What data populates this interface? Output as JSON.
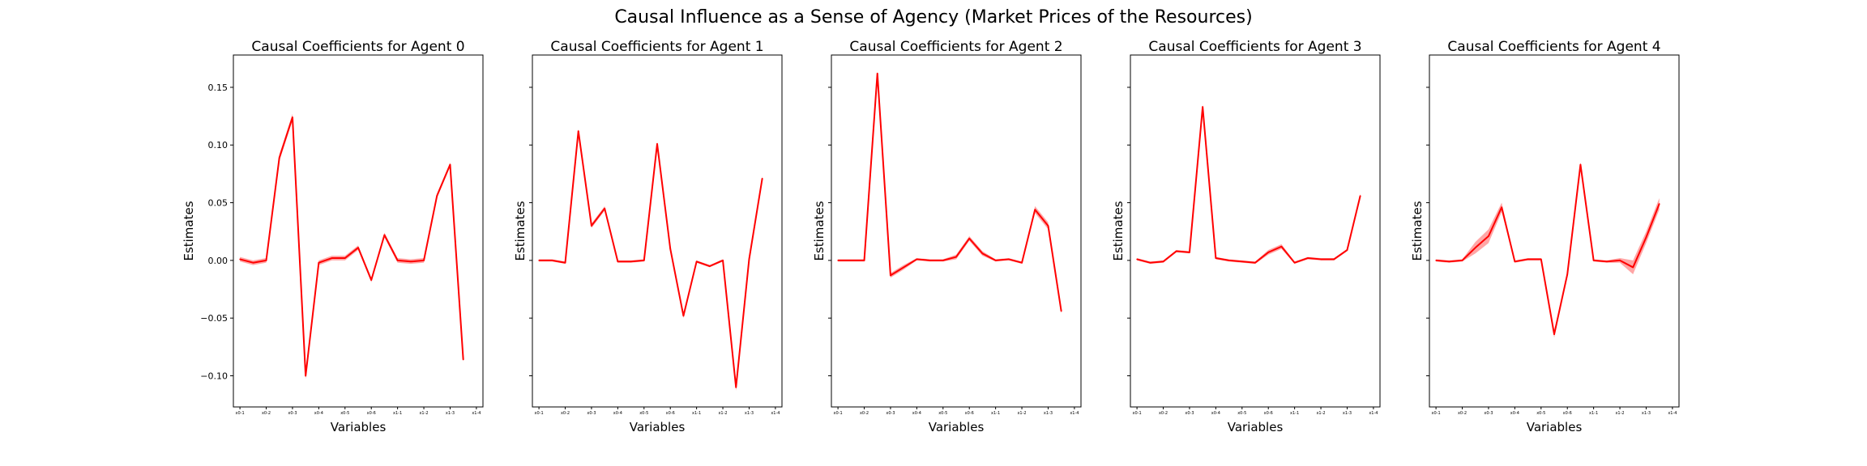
{
  "figure": {
    "title": "Causal Influence as a Sense of Agency (Market Prices of the Resources)"
  },
  "chart_data": [
    {
      "type": "line",
      "title": "Causal Coefficients for Agent 0",
      "xlabel": "Variables",
      "ylabel": "Estimates",
      "ylim": [
        -0.127,
        0.178
      ],
      "yticks": [
        -0.1,
        -0.05,
        0.0,
        0.05,
        0.1,
        0.15
      ],
      "ytick_labels": [
        "−0.10",
        "−0.05",
        "0.00",
        "0.05",
        "0.10",
        "0.15"
      ],
      "xtick_labels": [
        "x0-1",
        "x0-2",
        "x0-3",
        "x0-4",
        "x0-5",
        "x0-6",
        "x1-1",
        "x1-2",
        "x1-3",
        "x1-4"
      ],
      "xtick_positions": [
        0,
        2,
        4,
        6,
        8,
        10,
        12,
        14,
        16,
        18
      ],
      "color": "#ff0000",
      "values": [
        0.001,
        -0.002,
        0.0,
        0.089,
        0.124,
        -0.1,
        -0.002,
        0.002,
        0.002,
        0.011,
        -0.017,
        0.022,
        0.0,
        -0.001,
        0.0,
        0.056,
        0.083,
        -0.086
      ],
      "band": [
        0.002,
        0.002,
        0.002,
        0.003,
        0.003,
        0.003,
        0.002,
        0.002,
        0.002,
        0.002,
        0.002,
        0.002,
        0.002,
        0.002,
        0.002,
        0.002,
        0.002,
        0.002
      ]
    },
    {
      "type": "line",
      "title": "Causal Coefficients for Agent 1",
      "xlabel": "Variables",
      "ylabel": "Estimates",
      "ylim": [
        -0.127,
        0.178
      ],
      "yticks": [
        -0.1,
        -0.05,
        0.0,
        0.05,
        0.1,
        0.15
      ],
      "ytick_labels": [
        "",
        "",
        "",
        "",
        "",
        ""
      ],
      "xtick_labels": [
        "x0-1",
        "x0-2",
        "x0-3",
        "x0-4",
        "x0-5",
        "x0-6",
        "x1-1",
        "x1-2",
        "x1-3",
        "x1-4"
      ],
      "xtick_positions": [
        0,
        2,
        4,
        6,
        8,
        10,
        12,
        14,
        16,
        18
      ],
      "color": "#ff0000",
      "values": [
        0.0,
        0.0,
        -0.002,
        0.112,
        0.03,
        0.045,
        -0.001,
        -0.001,
        0.0,
        0.101,
        0.01,
        -0.048,
        -0.001,
        -0.005,
        0.0,
        -0.11,
        0.001,
        0.071
      ],
      "band": [
        0.001,
        0.001,
        0.001,
        0.002,
        0.002,
        0.002,
        0.001,
        0.001,
        0.001,
        0.002,
        0.002,
        0.002,
        0.001,
        0.001,
        0.001,
        0.003,
        0.002,
        0.002
      ]
    },
    {
      "type": "line",
      "title": "Causal Coefficients for Agent 2",
      "xlabel": "Variables",
      "ylabel": "Estimates",
      "ylim": [
        -0.127,
        0.178
      ],
      "yticks": [
        -0.1,
        -0.05,
        0.0,
        0.05,
        0.1,
        0.15
      ],
      "ytick_labels": [
        "",
        "",
        "",
        "",
        "",
        ""
      ],
      "xtick_labels": [
        "x0-1",
        "x0-2",
        "x0-3",
        "x0-4",
        "x0-5",
        "x0-6",
        "x1-1",
        "x1-2",
        "x1-3",
        "x1-4"
      ],
      "xtick_positions": [
        0,
        2,
        4,
        6,
        8,
        10,
        12,
        14,
        16,
        18
      ],
      "color": "#ff0000",
      "values": [
        0.0,
        0.0,
        0.0,
        0.162,
        -0.013,
        -0.006,
        0.001,
        0.0,
        0.0,
        0.003,
        0.019,
        0.006,
        0.0,
        0.001,
        -0.002,
        0.044,
        0.03,
        -0.044
      ],
      "band": [
        0.001,
        0.001,
        0.001,
        0.002,
        0.002,
        0.002,
        0.001,
        0.001,
        0.001,
        0.002,
        0.002,
        0.002,
        0.001,
        0.001,
        0.001,
        0.003,
        0.003,
        0.002
      ]
    },
    {
      "type": "line",
      "title": "Causal Coefficients for Agent 3",
      "xlabel": "Variables",
      "ylabel": "Estimates",
      "ylim": [
        -0.127,
        0.178
      ],
      "yticks": [
        -0.1,
        -0.05,
        0.0,
        0.05,
        0.1,
        0.15
      ],
      "ytick_labels": [
        "",
        "",
        "",
        "",
        "",
        ""
      ],
      "xtick_labels": [
        "x0-1",
        "x0-2",
        "x0-3",
        "x0-4",
        "x0-5",
        "x0-6",
        "x1-1",
        "x1-2",
        "x1-3",
        "x1-4"
      ],
      "xtick_positions": [
        0,
        2,
        4,
        6,
        8,
        10,
        12,
        14,
        16,
        18
      ],
      "color": "#ff0000",
      "values": [
        0.001,
        -0.002,
        -0.001,
        0.008,
        0.007,
        0.133,
        0.002,
        0.0,
        -0.001,
        -0.002,
        0.007,
        0.012,
        -0.002,
        0.002,
        0.001,
        0.001,
        0.009,
        0.056
      ],
      "band": [
        0.001,
        0.001,
        0.001,
        0.001,
        0.001,
        0.002,
        0.001,
        0.001,
        0.001,
        0.001,
        0.002,
        0.002,
        0.001,
        0.001,
        0.001,
        0.001,
        0.001,
        0.002
      ]
    },
    {
      "type": "line",
      "title": "Causal Coefficients for Agent 4",
      "xlabel": "Variables",
      "ylabel": "Estimates",
      "ylim": [
        -0.127,
        0.178
      ],
      "yticks": [
        -0.1,
        -0.05,
        0.0,
        0.05,
        0.1,
        0.15
      ],
      "ytick_labels": [
        "",
        "",
        "",
        "",
        "",
        ""
      ],
      "xtick_labels": [
        "x0-1",
        "x0-2",
        "x0-3",
        "x0-4",
        "x0-5",
        "x0-6",
        "x1-1",
        "x1-2",
        "x1-3",
        "x1-4"
      ],
      "xtick_positions": [
        0,
        2,
        4,
        6,
        8,
        10,
        12,
        14,
        16,
        18
      ],
      "color": "#ff0000",
      "values": [
        0.0,
        -0.001,
        0.0,
        0.011,
        0.021,
        0.046,
        -0.001,
        0.001,
        0.001,
        -0.064,
        -0.012,
        0.083,
        0.0,
        -0.001,
        0.0,
        -0.006,
        0.02,
        0.049
      ],
      "band": [
        0.001,
        0.001,
        0.001,
        0.005,
        0.006,
        0.004,
        0.001,
        0.001,
        0.001,
        0.003,
        0.002,
        0.002,
        0.001,
        0.001,
        0.002,
        0.006,
        0.005,
        0.005
      ]
    }
  ]
}
